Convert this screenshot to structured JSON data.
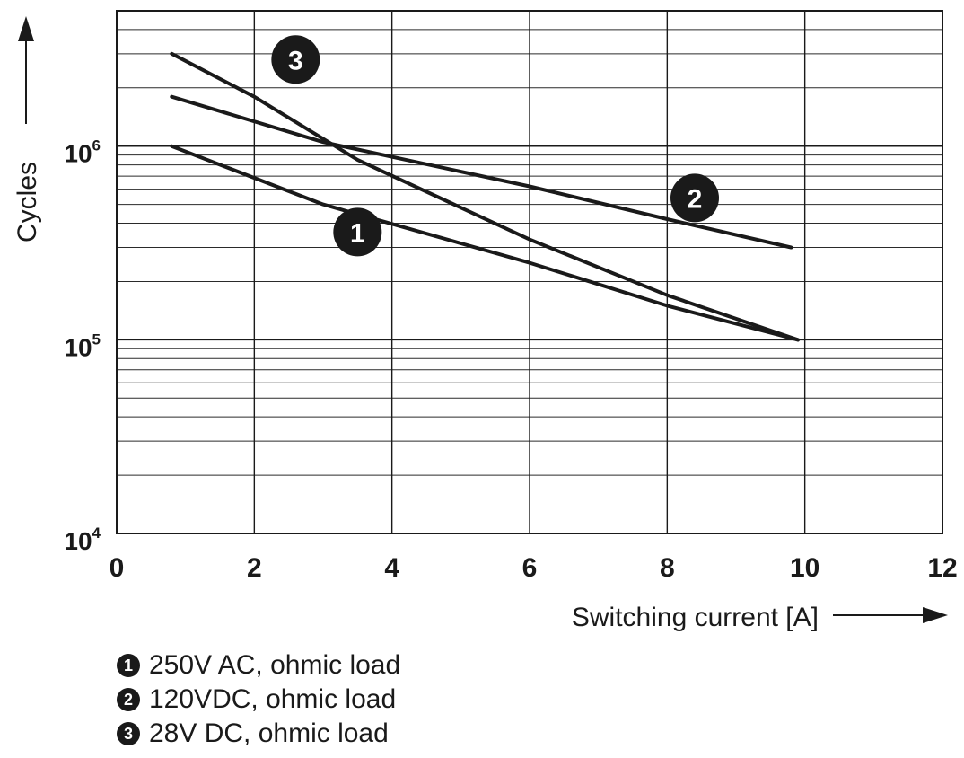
{
  "chart_data": {
    "type": "line",
    "title": "",
    "xlabel": "Switching current [A]",
    "ylabel": "Cycles",
    "xlim": [
      0,
      12
    ],
    "ylim": [
      10000,
      5000000
    ],
    "y_scale": "log",
    "grid": true,
    "x_ticks": [
      "0",
      "2",
      "4",
      "6",
      "8",
      "10",
      "12"
    ],
    "y_ticks": [
      {
        "base": "10",
        "exp": "4",
        "value": 10000
      },
      {
        "base": "10",
        "exp": "5",
        "value": 100000
      },
      {
        "base": "10",
        "exp": "6",
        "value": 1000000
      }
    ],
    "series": [
      {
        "name": "250V AC, ohmic load",
        "marker": "1",
        "x": [
          0.8,
          3.0,
          6.0,
          8.0,
          9.9
        ],
        "y": [
          1000000,
          500000,
          250000,
          150000,
          100000
        ],
        "label_at": [
          3.5,
          360000
        ]
      },
      {
        "name": "120VDC, ohmic load",
        "marker": "2",
        "x": [
          0.8,
          3.0,
          6.0,
          8.0,
          9.8
        ],
        "y": [
          1800000,
          1050000,
          620000,
          420000,
          300000
        ],
        "label_at": [
          8.4,
          540000
        ]
      },
      {
        "name": "28V DC, ohmic load",
        "marker": "3",
        "x": [
          0.8,
          2.0,
          3.5,
          6.0,
          8.0,
          9.9
        ],
        "y": [
          3000000,
          1800000,
          850000,
          330000,
          170000,
          100000
        ],
        "label_at": [
          2.6,
          2800000
        ]
      }
    ]
  }
}
